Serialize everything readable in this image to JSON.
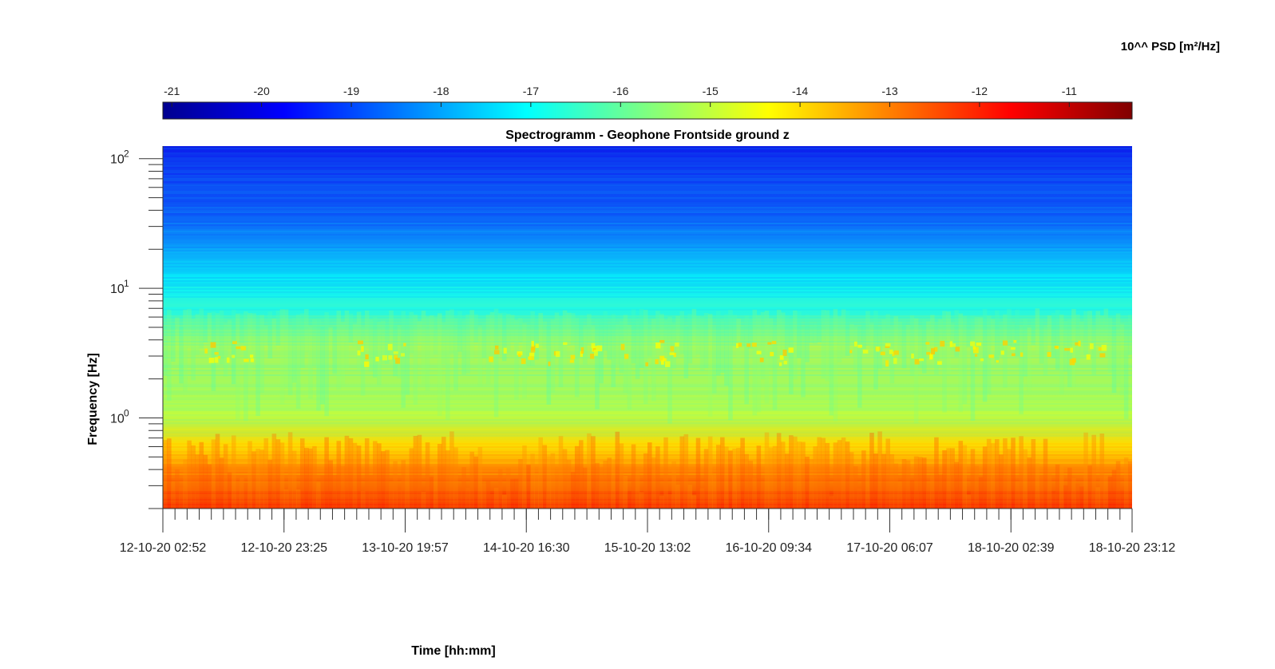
{
  "chart_data": {
    "type": "heatmap",
    "title": "Spectrogramm - Geophone Frontside ground z",
    "xlabel": "Time [hh:mm]",
    "ylabel": "Frequency [Hz]",
    "yscale": "log",
    "ylim": [
      0.2,
      125
    ],
    "y_ticks": [
      {
        "value": 1,
        "base": "10",
        "exp": "0"
      },
      {
        "value": 10,
        "base": "10",
        "exp": "1"
      },
      {
        "value": 100,
        "base": "10",
        "exp": "2"
      }
    ],
    "x_tick_labels": [
      "12-10-20 02:52",
      "12-10-20 23:25",
      "13-10-20 19:57",
      "14-10-20 16:30",
      "15-10-20 13:02",
      "16-10-20 09:34",
      "17-10-20 06:07",
      "18-10-20 02:39",
      "18-10-20 23:12"
    ],
    "colorbar": {
      "label": "10^^ PSD [m²/Hz]",
      "range": [
        -21.1,
        -10.3
      ],
      "ticks": [
        "-21",
        "-20",
        "-19",
        "-18",
        "-17",
        "-16",
        "-15",
        "-14",
        "-13",
        "-12",
        "-11"
      ],
      "tick_values": [
        -21,
        -20,
        -19,
        -18,
        -17,
        -16,
        -15,
        -14,
        -13,
        -12,
        -11
      ],
      "colormap": "jet",
      "location": "top"
    },
    "level_profile_by_frequency": [
      {
        "frequency_hz": 0.2,
        "log10_psd": -12.2
      },
      {
        "frequency_hz": 0.3,
        "log10_psd": -12.9
      },
      {
        "frequency_hz": 0.45,
        "log10_psd": -13.6
      },
      {
        "frequency_hz": 0.65,
        "log10_psd": -14.4
      },
      {
        "frequency_hz": 0.75,
        "log10_psd": -15.1
      },
      {
        "frequency_hz": 1.0,
        "log10_psd": -15.7
      },
      {
        "frequency_hz": 2.0,
        "log10_psd": -15.9
      },
      {
        "frequency_hz": 3.5,
        "log10_psd": -15.4
      },
      {
        "frequency_hz": 5.0,
        "log10_psd": -16.3
      },
      {
        "frequency_hz": 7.0,
        "log10_psd": -16.9
      },
      {
        "frequency_hz": 12.0,
        "log10_psd": -17.3
      },
      {
        "frequency_hz": 20.0,
        "log10_psd": -18.1
      },
      {
        "frequency_hz": 40.0,
        "log10_psd": -18.9
      },
      {
        "frequency_hz": 80.0,
        "log10_psd": -19.2
      },
      {
        "frequency_hz": 125.0,
        "log10_psd": -19.6
      }
    ],
    "activity_bursts_3hz_by_time_fraction": [
      0.07,
      0.22,
      0.36,
      0.42,
      0.5,
      0.62,
      0.73,
      0.8,
      0.86,
      0.94
    ],
    "grid": false
  }
}
